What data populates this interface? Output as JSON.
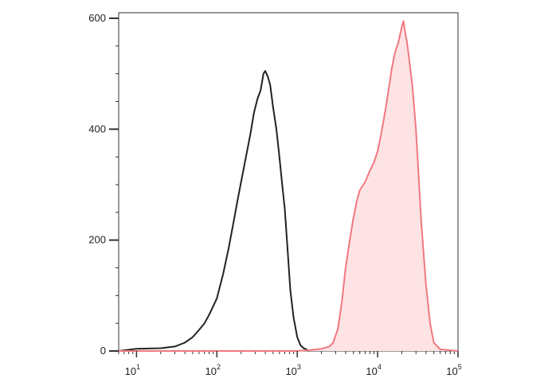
{
  "chart_data": {
    "type": "area",
    "title": "",
    "xlabel": "",
    "ylabel": "",
    "x_scale": "log",
    "xlim": [
      6,
      100000
    ],
    "ylim": [
      0,
      610
    ],
    "grid": false,
    "legend": "none",
    "x_ticks": [
      {
        "value": 10,
        "base": "10",
        "exp": "1"
      },
      {
        "value": 100,
        "base": "10",
        "exp": "2"
      },
      {
        "value": 1000,
        "base": "10",
        "exp": "3"
      },
      {
        "value": 10000,
        "base": "10",
        "exp": "4"
      },
      {
        "value": 100000,
        "base": "10",
        "exp": "5"
      }
    ],
    "y_ticks": [
      {
        "value": 0,
        "label": "0"
      },
      {
        "value": 200,
        "label": "200"
      },
      {
        "value": 400,
        "label": "400"
      },
      {
        "value": 600,
        "label": "600"
      }
    ],
    "series": [
      {
        "color": "#222222",
        "fill": "none",
        "x": [
          6,
          10,
          20,
          30,
          40,
          50,
          60,
          70,
          80,
          100,
          120,
          140,
          160,
          180,
          200,
          230,
          260,
          290,
          320,
          350,
          380,
          400,
          430,
          460,
          500,
          550,
          600,
          650,
          700,
          760,
          820,
          900,
          1000,
          1100,
          1200,
          1300,
          1400
        ],
        "y": [
          0,
          4,
          5,
          8,
          15,
          25,
          38,
          50,
          65,
          95,
          140,
          185,
          230,
          270,
          305,
          350,
          390,
          430,
          455,
          470,
          500,
          505,
          495,
          480,
          440,
          400,
          350,
          300,
          255,
          180,
          110,
          60,
          25,
          10,
          5,
          3,
          0
        ]
      },
      {
        "color": "#f07880",
        "fill": "#fde3e4",
        "x": [
          6,
          100,
          1000,
          1500,
          2000,
          2500,
          2800,
          3200,
          3600,
          4000,
          4500,
          5000,
          5500,
          6000,
          7000,
          8000,
          9000,
          10000,
          11000,
          12000,
          13000,
          14000,
          15000,
          16000,
          17000,
          18000,
          19000,
          20000,
          21000,
          22000,
          23000,
          24000,
          25000,
          27000,
          30000,
          35000,
          40000,
          45000,
          50000,
          60000,
          100000
        ],
        "y": [
          0,
          0,
          0,
          2,
          4,
          8,
          15,
          40,
          90,
          150,
          200,
          240,
          270,
          290,
          305,
          325,
          340,
          360,
          390,
          420,
          450,
          480,
          510,
          530,
          545,
          555,
          570,
          585,
          595,
          575,
          560,
          540,
          520,
          480,
          400,
          230,
          120,
          50,
          15,
          3,
          0
        ]
      }
    ]
  }
}
